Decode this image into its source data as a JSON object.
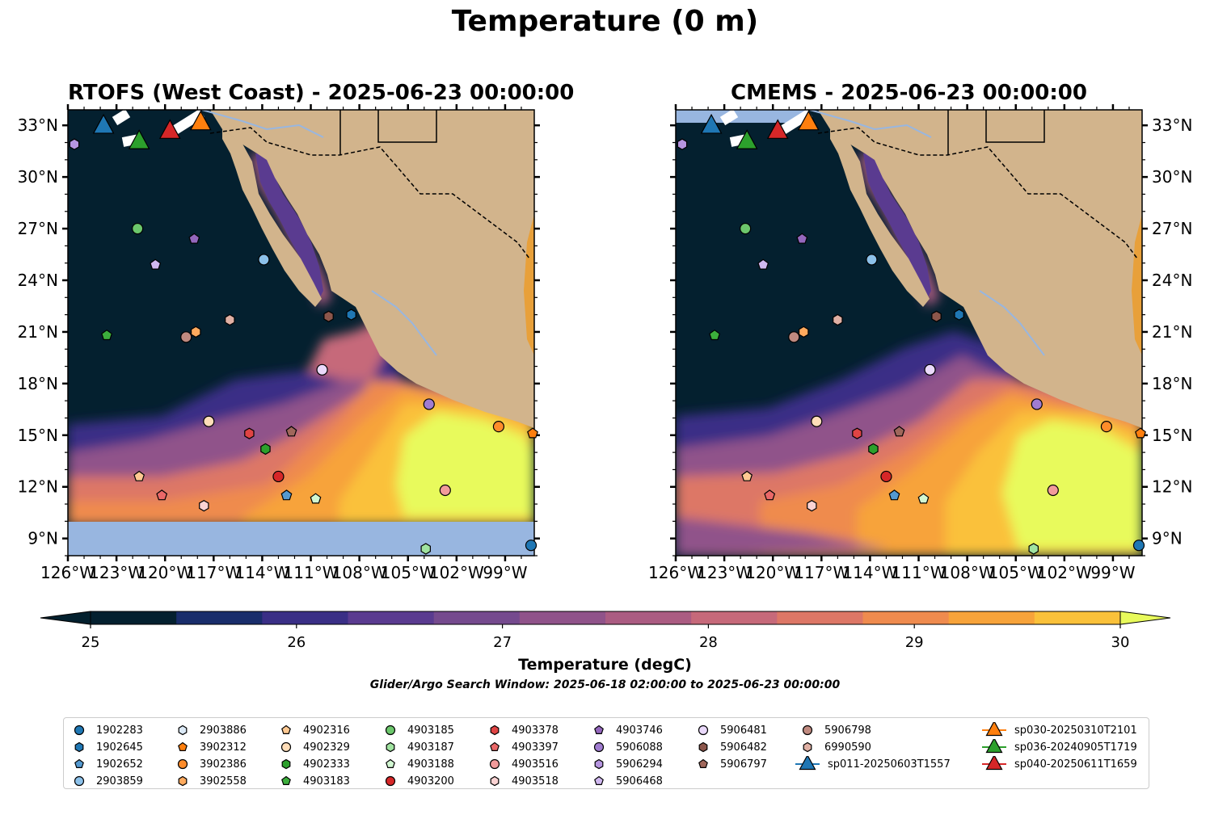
{
  "figure": {
    "title": "Temperature (0 m)",
    "panels": [
      {
        "title": "RTOFS (West Coast) - 2025-06-23 00:00:00"
      },
      {
        "title": "CMEMS - 2025-06-23 00:00:00"
      }
    ],
    "colorbar": {
      "label": "Temperature (degC)",
      "ticks": [
        "25",
        "26",
        "27",
        "28",
        "29",
        "30"
      ],
      "colors": [
        "#04202f",
        "#192d6b",
        "#3a2f86",
        "#5a3b90",
        "#754a8e",
        "#90538a",
        "#ab5c82",
        "#c6697a",
        "#dd7766",
        "#ef8b4e",
        "#f7a33a",
        "#fac13a"
      ],
      "under_color": "#03202e",
      "over_color": "#e8fa5b"
    },
    "search_window": "Glider/Argo Search Window: 2025-06-18 02:00:00 to 2025-06-23 00:00:00",
    "axes": {
      "lon_ticks": [
        "126°W",
        "123°W",
        "120°W",
        "117°W",
        "114°W",
        "111°W",
        "108°W",
        "105°W",
        "102°W",
        "99°W"
      ],
      "lat_ticks": [
        "33°N",
        "30°N",
        "27°N",
        "24°N",
        "21°N",
        "18°N",
        "15°N",
        "12°N",
        "9°N"
      ],
      "lon_range": [
        -126,
        -97.2
      ],
      "lat_range": [
        8.0,
        33.9
      ]
    },
    "colors": {
      "land": "#d2b48c",
      "ocean_nodata": "#98b6e0",
      "rivers": "#98b6e0"
    }
  },
  "legend": [
    {
      "label": "1902283",
      "marker": "circle",
      "color": "#1f77b4"
    },
    {
      "label": "1902645",
      "marker": "hexagon",
      "color": "#1f77b4"
    },
    {
      "label": "1902652",
      "marker": "pentagon",
      "color": "#5499d0"
    },
    {
      "label": "2903859",
      "marker": "circle",
      "color": "#8cc1ea"
    },
    {
      "label": "2903886",
      "marker": "hexagon",
      "color": "#dceaf7"
    },
    {
      "label": "3902312",
      "marker": "pentagon",
      "color": "#ff7f0e"
    },
    {
      "label": "3902386",
      "marker": "circle",
      "color": "#ff8c2a"
    },
    {
      "label": "3902558",
      "marker": "hexagon",
      "color": "#ffaa5e"
    },
    {
      "label": "4902316",
      "marker": "pentagon",
      "color": "#ffc992"
    },
    {
      "label": "4902329",
      "marker": "circle",
      "color": "#ffddb8"
    },
    {
      "label": "4902333",
      "marker": "hexagon",
      "color": "#2ca02c"
    },
    {
      "label": "4903183",
      "marker": "pentagon",
      "color": "#3cae3c"
    },
    {
      "label": "4903185",
      "marker": "circle",
      "color": "#6cc76c"
    },
    {
      "label": "4903187",
      "marker": "hexagon",
      "color": "#a0e3a0"
    },
    {
      "label": "4903188",
      "marker": "pentagon",
      "color": "#d2f7d2"
    },
    {
      "label": "4903200",
      "marker": "circle",
      "color": "#d62728"
    },
    {
      "label": "4903378",
      "marker": "hexagon",
      "color": "#e04444"
    },
    {
      "label": "4903397",
      "marker": "pentagon",
      "color": "#ea6868"
    },
    {
      "label": "4903516",
      "marker": "circle",
      "color": "#f29b9b"
    },
    {
      "label": "4903518",
      "marker": "hexagon",
      "color": "#fbd3d3"
    },
    {
      "label": "4903746",
      "marker": "pentagon",
      "color": "#9467bd"
    },
    {
      "label": "5906088",
      "marker": "circle",
      "color": "#a07cd0"
    },
    {
      "label": "5906294",
      "marker": "hexagon",
      "color": "#b695e0"
    },
    {
      "label": "5906468",
      "marker": "pentagon",
      "color": "#d0b8f0"
    },
    {
      "label": "5906481",
      "marker": "circle",
      "color": "#ead9fb"
    },
    {
      "label": "5906482",
      "marker": "hexagon",
      "color": "#8c564b"
    },
    {
      "label": "5906797",
      "marker": "pentagon",
      "color": "#a0675b"
    },
    {
      "label": "sp011-20250603T1557",
      "marker": "triangle",
      "color": "#1f77b4"
    },
    {
      "label": "5906798",
      "marker": "circle",
      "color": "#c08a80"
    },
    {
      "label": "6990590",
      "marker": "hexagon",
      "color": "#e0b0a4"
    },
    {
      "label": "sp030-20250310T2101",
      "marker": "triangle",
      "color": "#ff7f0e"
    },
    {
      "label": "sp036-20240905T1719",
      "marker": "triangle",
      "color": "#2ca02c"
    },
    {
      "label": "sp040-20250611T1659",
      "marker": "triangle",
      "color": "#d62728"
    }
  ],
  "floats": [
    {
      "id": "1902283",
      "lon": -97.4,
      "lat": 8.6
    },
    {
      "id": "1902645",
      "lon": -108.5,
      "lat": 22.0
    },
    {
      "id": "1902652",
      "lon": -112.5,
      "lat": 11.5
    },
    {
      "id": "2903859",
      "lon": -113.9,
      "lat": 25.2
    },
    {
      "id": "3902312",
      "lon": -97.3,
      "lat": 15.1
    },
    {
      "id": "3902386",
      "lon": -99.4,
      "lat": 15.5
    },
    {
      "id": "3902558",
      "lon": -118.1,
      "lat": 21.0
    },
    {
      "id": "4902316",
      "lon": -121.6,
      "lat": 12.6
    },
    {
      "id": "4902329",
      "lon": -117.3,
      "lat": 15.8
    },
    {
      "id": "4902333",
      "lon": -113.8,
      "lat": 14.2
    },
    {
      "id": "4903183",
      "lon": -123.6,
      "lat": 20.8
    },
    {
      "id": "4903185",
      "lon": -121.7,
      "lat": 27.0
    },
    {
      "id": "4903187",
      "lon": -103.9,
      "lat": 8.4
    },
    {
      "id": "4903188",
      "lon": -110.7,
      "lat": 11.3
    },
    {
      "id": "4903200",
      "lon": -113.0,
      "lat": 12.6
    },
    {
      "id": "4903378",
      "lon": -114.8,
      "lat": 15.1
    },
    {
      "id": "4903397",
      "lon": -120.2,
      "lat": 11.5
    },
    {
      "id": "4903516",
      "lon": -102.7,
      "lat": 11.8
    },
    {
      "id": "4903518",
      "lon": -117.6,
      "lat": 10.9
    },
    {
      "id": "4903746",
      "lon": -118.2,
      "lat": 26.4
    },
    {
      "id": "5906088",
      "lon": -103.7,
      "lat": 16.8
    },
    {
      "id": "5906294",
      "lon": -125.6,
      "lat": 31.9
    },
    {
      "id": "5906468",
      "lon": -120.6,
      "lat": 24.9
    },
    {
      "id": "5906481",
      "lon": -110.3,
      "lat": 18.8
    },
    {
      "id": "5906482",
      "lon": -109.9,
      "lat": 21.9
    },
    {
      "id": "5906797",
      "lon": -112.2,
      "lat": 15.2
    },
    {
      "id": "5906798",
      "lon": -118.7,
      "lat": 20.7
    },
    {
      "id": "6990590",
      "lon": -116.0,
      "lat": 21.7
    }
  ],
  "gliders": [
    {
      "id": "sp011-20250603T1557",
      "lon": -123.8,
      "lat": 33.0
    },
    {
      "id": "sp030-20250310T2101",
      "lon": -117.8,
      "lat": 33.2
    },
    {
      "id": "sp036-20240905T1719",
      "lon": -121.6,
      "lat": 32.1
    },
    {
      "id": "sp040-20250611T1659",
      "lon": -119.7,
      "lat": 32.7
    }
  ]
}
